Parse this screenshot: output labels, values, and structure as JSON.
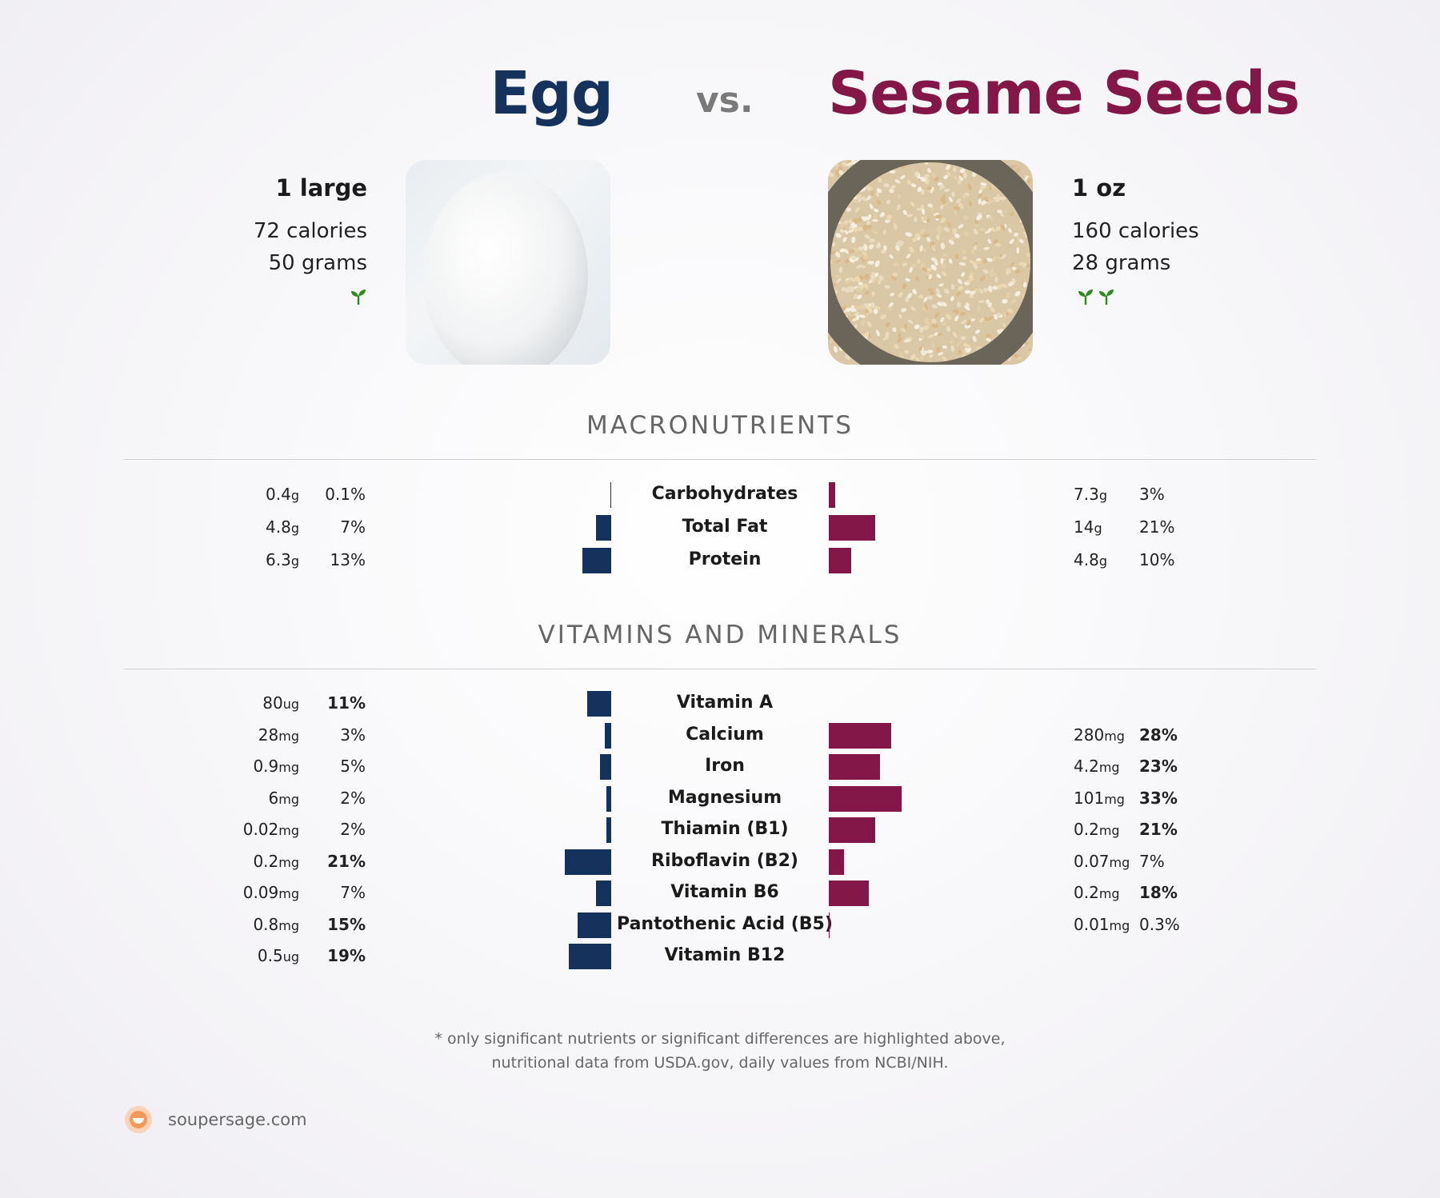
{
  "header": {
    "left_title": "Egg",
    "vs": "vs.",
    "right_title": "Sesame Seeds"
  },
  "left_food": {
    "serving": "1 large",
    "calories": "72 calories",
    "grams": "50 grams",
    "sprout_count": 1
  },
  "right_food": {
    "serving": "1 oz",
    "calories": "160 calories",
    "grams": "28 grams",
    "sprout_count": 2
  },
  "colors": {
    "left": "#14325c",
    "right": "#821748",
    "sprout": "#2f8a1e"
  },
  "sections": {
    "macro": "MACRONUTRIENTS",
    "vitamins": "VITAMINS AND MINERALS"
  },
  "chart_data": [
    {
      "type": "bar",
      "title": "MACRONUTRIENTS",
      "categories": [
        "Carbohydrates",
        "Total Fat",
        "Protein"
      ],
      "series": [
        {
          "name": "Egg",
          "amounts": [
            "0.4",
            "4.8",
            "6.3"
          ],
          "units": [
            "g",
            "g",
            "g"
          ],
          "percent_labels": [
            "0.1%",
            "7%",
            "13%"
          ],
          "bold": [
            false,
            false,
            false
          ],
          "values": [
            0.1,
            7,
            13
          ]
        },
        {
          "name": "Sesame Seeds",
          "amounts": [
            "7.3",
            "14",
            "4.8"
          ],
          "units": [
            "g",
            "g",
            "g"
          ],
          "percent_labels": [
            "3%",
            "21%",
            "10%"
          ],
          "bold": [
            false,
            false,
            false
          ],
          "values": [
            3,
            21,
            10
          ]
        }
      ]
    },
    {
      "type": "bar",
      "title": "VITAMINS AND MINERALS",
      "categories": [
        "Vitamin A",
        "Calcium",
        "Iron",
        "Magnesium",
        "Thiamin (B1)",
        "Riboflavin (B2)",
        "Vitamin B6",
        "Pantothenic Acid (B5)",
        "Vitamin B12"
      ],
      "series": [
        {
          "name": "Egg",
          "amounts": [
            "80",
            "28",
            "0.9",
            "6",
            "0.02",
            "0.2",
            "0.09",
            "0.8",
            "0.5"
          ],
          "units": [
            "ug",
            "mg",
            "mg",
            "mg",
            "mg",
            "mg",
            "mg",
            "mg",
            "ug"
          ],
          "percent_labels": [
            "11%",
            "3%",
            "5%",
            "2%",
            "2%",
            "21%",
            "7%",
            "15%",
            "19%"
          ],
          "bold": [
            true,
            false,
            false,
            false,
            false,
            true,
            false,
            true,
            true
          ],
          "values": [
            11,
            3,
            5,
            2,
            2,
            21,
            7,
            15,
            19
          ]
        },
        {
          "name": "Sesame Seeds",
          "amounts": [
            "",
            "280",
            "4.2",
            "101",
            "0.2",
            "0.07",
            "0.2",
            "0.01",
            ""
          ],
          "units": [
            "",
            "mg",
            "mg",
            "mg",
            "mg",
            "mg",
            "mg",
            "mg",
            ""
          ],
          "percent_labels": [
            "",
            "28%",
            "23%",
            "33%",
            "21%",
            "7%",
            "18%",
            "0.3%",
            ""
          ],
          "bold": [
            false,
            true,
            true,
            true,
            true,
            false,
            true,
            false,
            false
          ],
          "values": [
            0,
            28,
            23,
            33,
            21,
            7,
            18,
            0.3,
            0
          ]
        }
      ]
    }
  ],
  "footnote": {
    "line1": "* only significant nutrients or significant differences are highlighted above,",
    "line2": "nutritional data from USDA.gov, daily values from NCBI/NIH."
  },
  "brand": {
    "site": "soupersage.com"
  }
}
